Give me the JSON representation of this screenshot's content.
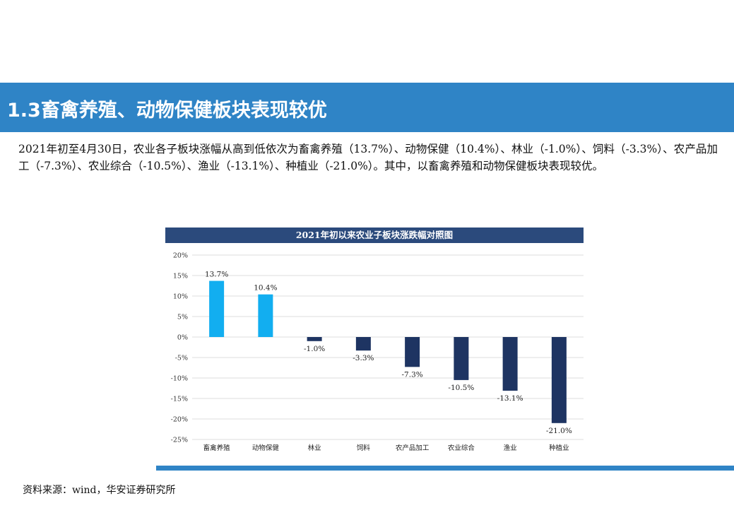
{
  "section": {
    "title": "1.3畜禽养殖、动物保健板块表现较优"
  },
  "paragraph": "2021年初至4月30日，农业各子板块涨幅从高到低依次为畜禽养殖（13.7%）、动物保健（10.4%）、林业（-1.0%）、饲料（-3.3%）、农产品加工（-7.3%）、农业综合（-10.5%）、渔业（-13.1%）、种植业（-21.0%）。其中，以畜禽养殖和动物保健板块表现较优。",
  "chart_data": {
    "type": "bar",
    "title": "2021年初以来农业子板块涨跌幅对照图",
    "categories": [
      "畜禽养殖",
      "动物保健",
      "林业",
      "饲料",
      "农产品加工",
      "农业综合",
      "渔业",
      "种植业"
    ],
    "values": [
      13.7,
      10.4,
      -1.0,
      -3.3,
      -7.3,
      -10.5,
      -13.1,
      -21.0
    ],
    "value_labels": [
      "13.7%",
      "10.4%",
      "-1.0%",
      "-3.3%",
      "-7.3%",
      "-10.5%",
      "-13.1%",
      "-21.0%"
    ],
    "yticks": [
      20,
      15,
      10,
      5,
      0,
      -5,
      -10,
      -15,
      -20,
      -25
    ],
    "ytick_labels": [
      "20%",
      "15%",
      "10%",
      "5%",
      "0%",
      "-5%",
      "-10%",
      "-15%",
      "-20%",
      "-25%"
    ],
    "ylim": [
      -25,
      20
    ],
    "grid": true,
    "colors": {
      "positive": "#12aef0",
      "negative": "#1e3462",
      "grid": "#dcdcdc",
      "header": "#2b4a7c"
    }
  },
  "source": "资料来源：wind，华安证券研究所"
}
